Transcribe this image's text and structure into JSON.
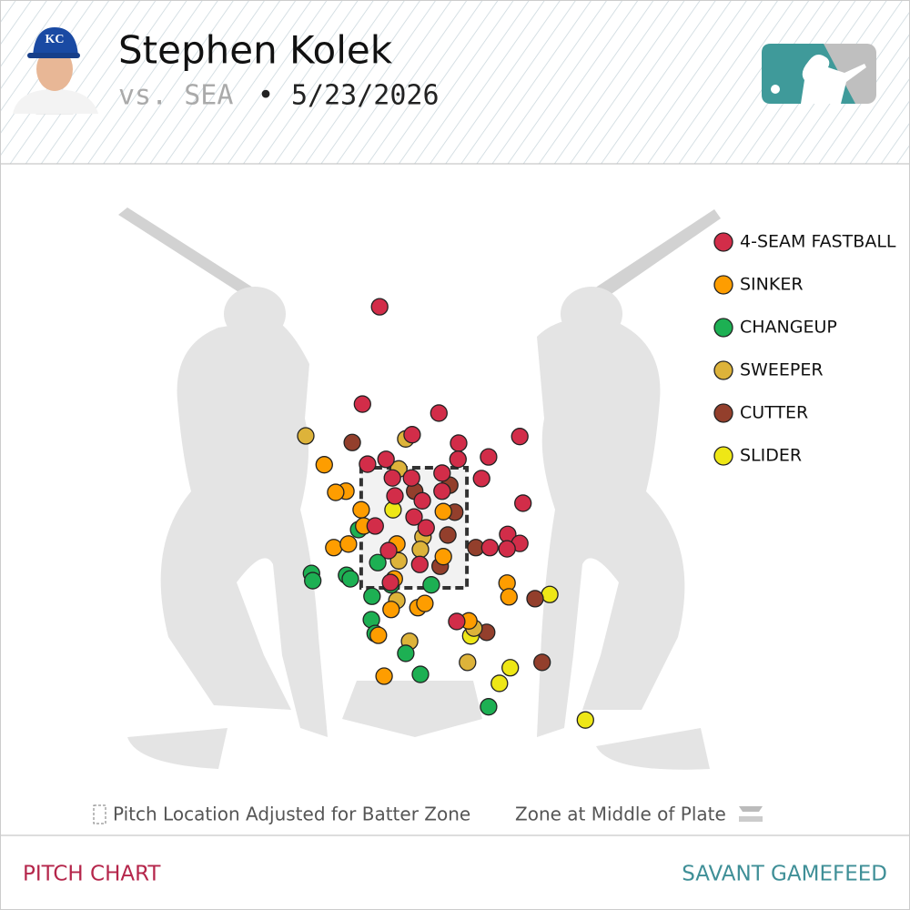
{
  "header": {
    "name": "Stephen Kolek",
    "matchup": "vs. SEA",
    "separator": "•",
    "date": "5/23/2026"
  },
  "chart_data": {
    "type": "scatter",
    "xlim": [
      -4.5,
      4.5
    ],
    "ylim": [
      -1,
      7
    ],
    "strike_zone": {
      "x": [
        -0.83,
        0.83
      ],
      "y": [
        1.5,
        3.5
      ]
    },
    "series": [
      {
        "name": "4-SEAM FASTBALL",
        "color": "#d22d49",
        "x": [
          -0.54,
          -0.81,
          0.39,
          -0.03,
          0.7,
          1.66,
          1.17,
          0.69,
          -0.44,
          -0.73,
          -0.34,
          -0.04,
          0.44,
          1.06,
          -0.3,
          0.44,
          1.71,
          0.13,
          -0.61,
          0.0,
          0.19,
          1.47,
          1.66,
          1.46,
          1.19,
          -0.4,
          0.09,
          -0.37,
          0.67
        ],
        "values": [
          6.18,
          4.56,
          4.41,
          4.05,
          3.91,
          4.02,
          3.68,
          3.64,
          3.64,
          3.56,
          3.33,
          3.33,
          3.41,
          3.32,
          3.03,
          3.11,
          2.91,
          2.95,
          2.53,
          2.68,
          2.5,
          2.39,
          2.24,
          2.15,
          2.17,
          2.12,
          1.89,
          1.59,
          0.94
        ]
      },
      {
        "name": "SINKER",
        "color": "#fe9d00",
        "x": [
          -1.41,
          -1.07,
          -1.23,
          -0.83,
          -0.79,
          0.46,
          -1.26,
          -0.27,
          0.46,
          -1.03,
          1.46,
          1.49,
          -0.31,
          -0.36,
          0.06,
          0.17,
          0.86,
          -0.56,
          -0.47
        ],
        "values": [
          3.55,
          3.11,
          3.09,
          2.8,
          2.53,
          2.77,
          2.17,
          2.23,
          2.02,
          2.23,
          1.58,
          1.35,
          1.65,
          1.14,
          1.17,
          1.24,
          0.95,
          0.71,
          0.03
        ]
      },
      {
        "name": "CHANGEUP",
        "color": "#1db053",
        "x": [
          -1.61,
          -1.59,
          -1.06,
          -1.0,
          -0.87,
          -0.57,
          -0.36,
          -0.66,
          0.27,
          -0.67,
          -0.61,
          -0.13,
          0.1,
          1.17
        ],
        "values": [
          1.74,
          1.62,
          1.71,
          1.65,
          2.47,
          1.92,
          1.55,
          1.36,
          1.55,
          0.97,
          0.74,
          0.41,
          0.06,
          -0.48
        ]
      },
      {
        "name": "SWEEPER",
        "color": "#ddb33a",
        "x": [
          -1.7,
          -0.13,
          -0.24,
          0.14,
          0.1,
          -0.24,
          -0.27,
          0.94,
          -0.07,
          0.84
        ],
        "values": [
          4.03,
          3.98,
          3.48,
          2.35,
          2.14,
          1.95,
          1.29,
          0.83,
          0.61,
          0.26
        ]
      },
      {
        "name": "CUTTER",
        "color": "#933f2c",
        "x": [
          -0.97,
          0.01,
          0.56,
          0.64,
          0.53,
          0.97,
          0.41,
          1.9,
          1.14,
          2.01
        ],
        "values": [
          3.92,
          3.11,
          3.21,
          2.76,
          2.38,
          2.17,
          1.86,
          1.32,
          0.76,
          0.26
        ]
      },
      {
        "name": "SLIDER",
        "color": "#eee716",
        "x": [
          -0.33,
          2.13,
          0.89,
          1.51,
          1.34,
          2.69
        ],
        "values": [
          2.8,
          1.39,
          0.7,
          0.17,
          -0.09,
          -0.7
        ]
      }
    ],
    "notes": [
      "Pitch Location Adjusted for Batter Zone",
      "Zone at Middle of Plate"
    ]
  },
  "footer": {
    "left": "PITCH CHART",
    "right": "SAVANT GAMEFEED"
  }
}
